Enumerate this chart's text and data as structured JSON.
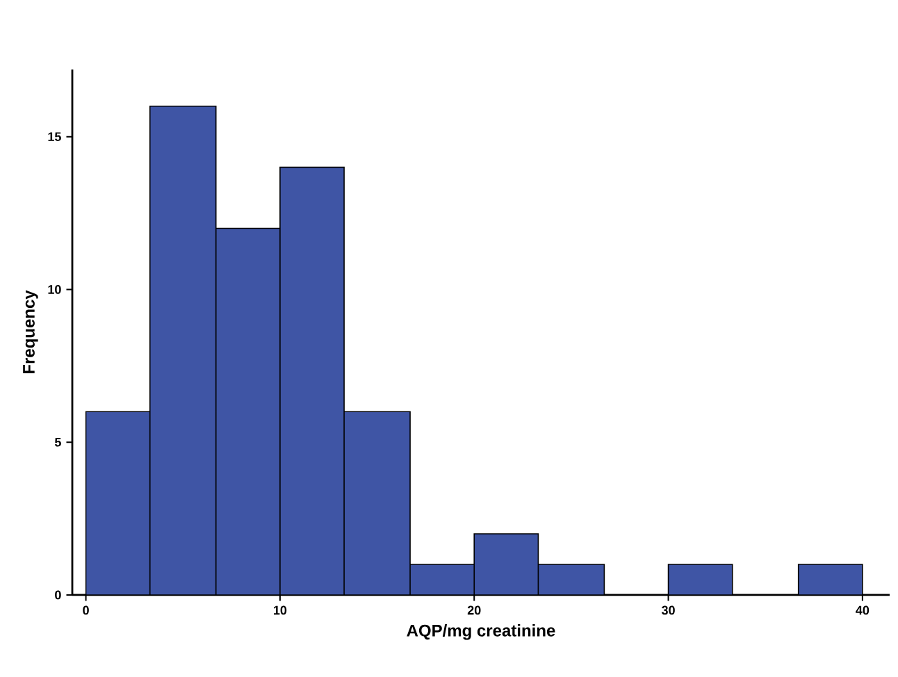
{
  "chart_data": {
    "type": "histogram",
    "xlabel": "AQP/mg creatinine",
    "ylabel": "Frequency",
    "bins": [
      0,
      3.3,
      6.7,
      10,
      13.3,
      16.7,
      20,
      23.3,
      26.7,
      30,
      33.3,
      36.7,
      40
    ],
    "values": [
      6,
      16,
      12,
      14,
      6,
      1,
      2,
      1,
      0,
      1,
      0,
      1
    ],
    "color": "#3f55a5",
    "xlim": [
      -0.7,
      41.4
    ],
    "ylim": [
      0,
      17.2
    ],
    "xticks": [
      0,
      10,
      20,
      30,
      40
    ],
    "yticks": [
      0,
      5,
      10,
      15
    ],
    "grid": false
  }
}
